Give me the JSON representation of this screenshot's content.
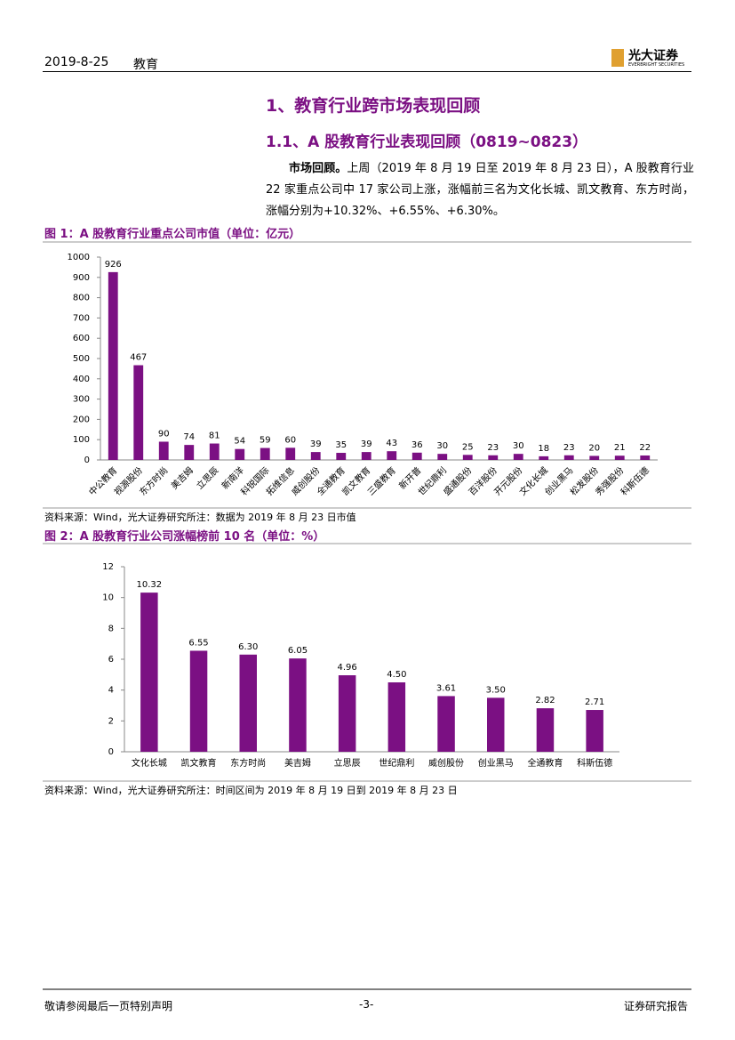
{
  "header": {
    "date": "2019-8-25",
    "sector": "教育",
    "logo": "光大证券",
    "logo_en": "EVERBRIGHT SECURITIES"
  },
  "heading1": "1、教育行业跨市场表现回顾",
  "heading2": "1.1、A 股教育行业表现回顾（0819~0823）",
  "paragraph": {
    "lead": "市场回顾。",
    "text": "上周（2019 年 8 月 19 日至 2019 年 8 月 23 日），A 股教育行业 22 家重点公司中 17 家公司上涨，涨幅前三名为文化长城、凯文教育、东方时尚，涨幅分别为+10.32%、+6.55%、+6.30%。"
  },
  "chart_data": [
    {
      "type": "bar",
      "title": "图 1：A 股教育行业重点公司市值（单位：亿元）",
      "source": "资料来源：Wind，光大证券研究所注：数据为 2019 年 8 月 23 日市值",
      "categories": [
        "中公教育",
        "视源股份",
        "东方时尚",
        "美吉姆",
        "立思辰",
        "新南洋",
        "科锐国际",
        "拓维信息",
        "威创股份",
        "全通教育",
        "凯文教育",
        "三盛教育",
        "新开普",
        "世纪鼎利",
        "盛通股份",
        "百洋股份",
        "开元股份",
        "文化长城",
        "创业黑马",
        "松发股份",
        "秀强股份",
        "科斯伍德"
      ],
      "values": [
        926,
        467,
        90,
        74,
        81,
        54,
        59,
        60,
        39,
        35,
        39,
        43,
        36,
        30,
        25,
        23,
        30,
        18,
        23,
        20,
        21,
        22
      ],
      "color": "#7b1083",
      "ylim": [
        0,
        1000
      ],
      "yticks": [
        0,
        100,
        200,
        300,
        400,
        500,
        600,
        700,
        800,
        900,
        1000
      ]
    },
    {
      "type": "bar",
      "title": "图 2：A 股教育行业公司涨幅榜前 10 名（单位：%）",
      "source": "资料来源：Wind，光大证券研究所注：时间区间为 2019 年 8 月 19 日到 2019 年 8 月 23 日",
      "categories": [
        "文化长城",
        "凯文教育",
        "东方时尚",
        "美吉姆",
        "立思辰",
        "世纪鼎利",
        "威创股份",
        "创业黑马",
        "全通教育",
        "科斯伍德"
      ],
      "values": [
        10.32,
        6.55,
        6.3,
        6.05,
        4.96,
        4.5,
        3.61,
        3.5,
        2.82,
        2.71
      ],
      "value_labels": [
        "10.32",
        "6.55",
        "6.30",
        "6.05",
        "4.96",
        "4.50",
        "3.61",
        "3.50",
        "2.82",
        "2.71"
      ],
      "color": "#7b1083",
      "ylim": [
        0,
        12
      ],
      "yticks": [
        0,
        2,
        4,
        6,
        8,
        10,
        12
      ]
    }
  ],
  "footer": {
    "left": "敬请参阅最后一页特别声明",
    "center": "-3-",
    "right": "证券研究报告"
  }
}
